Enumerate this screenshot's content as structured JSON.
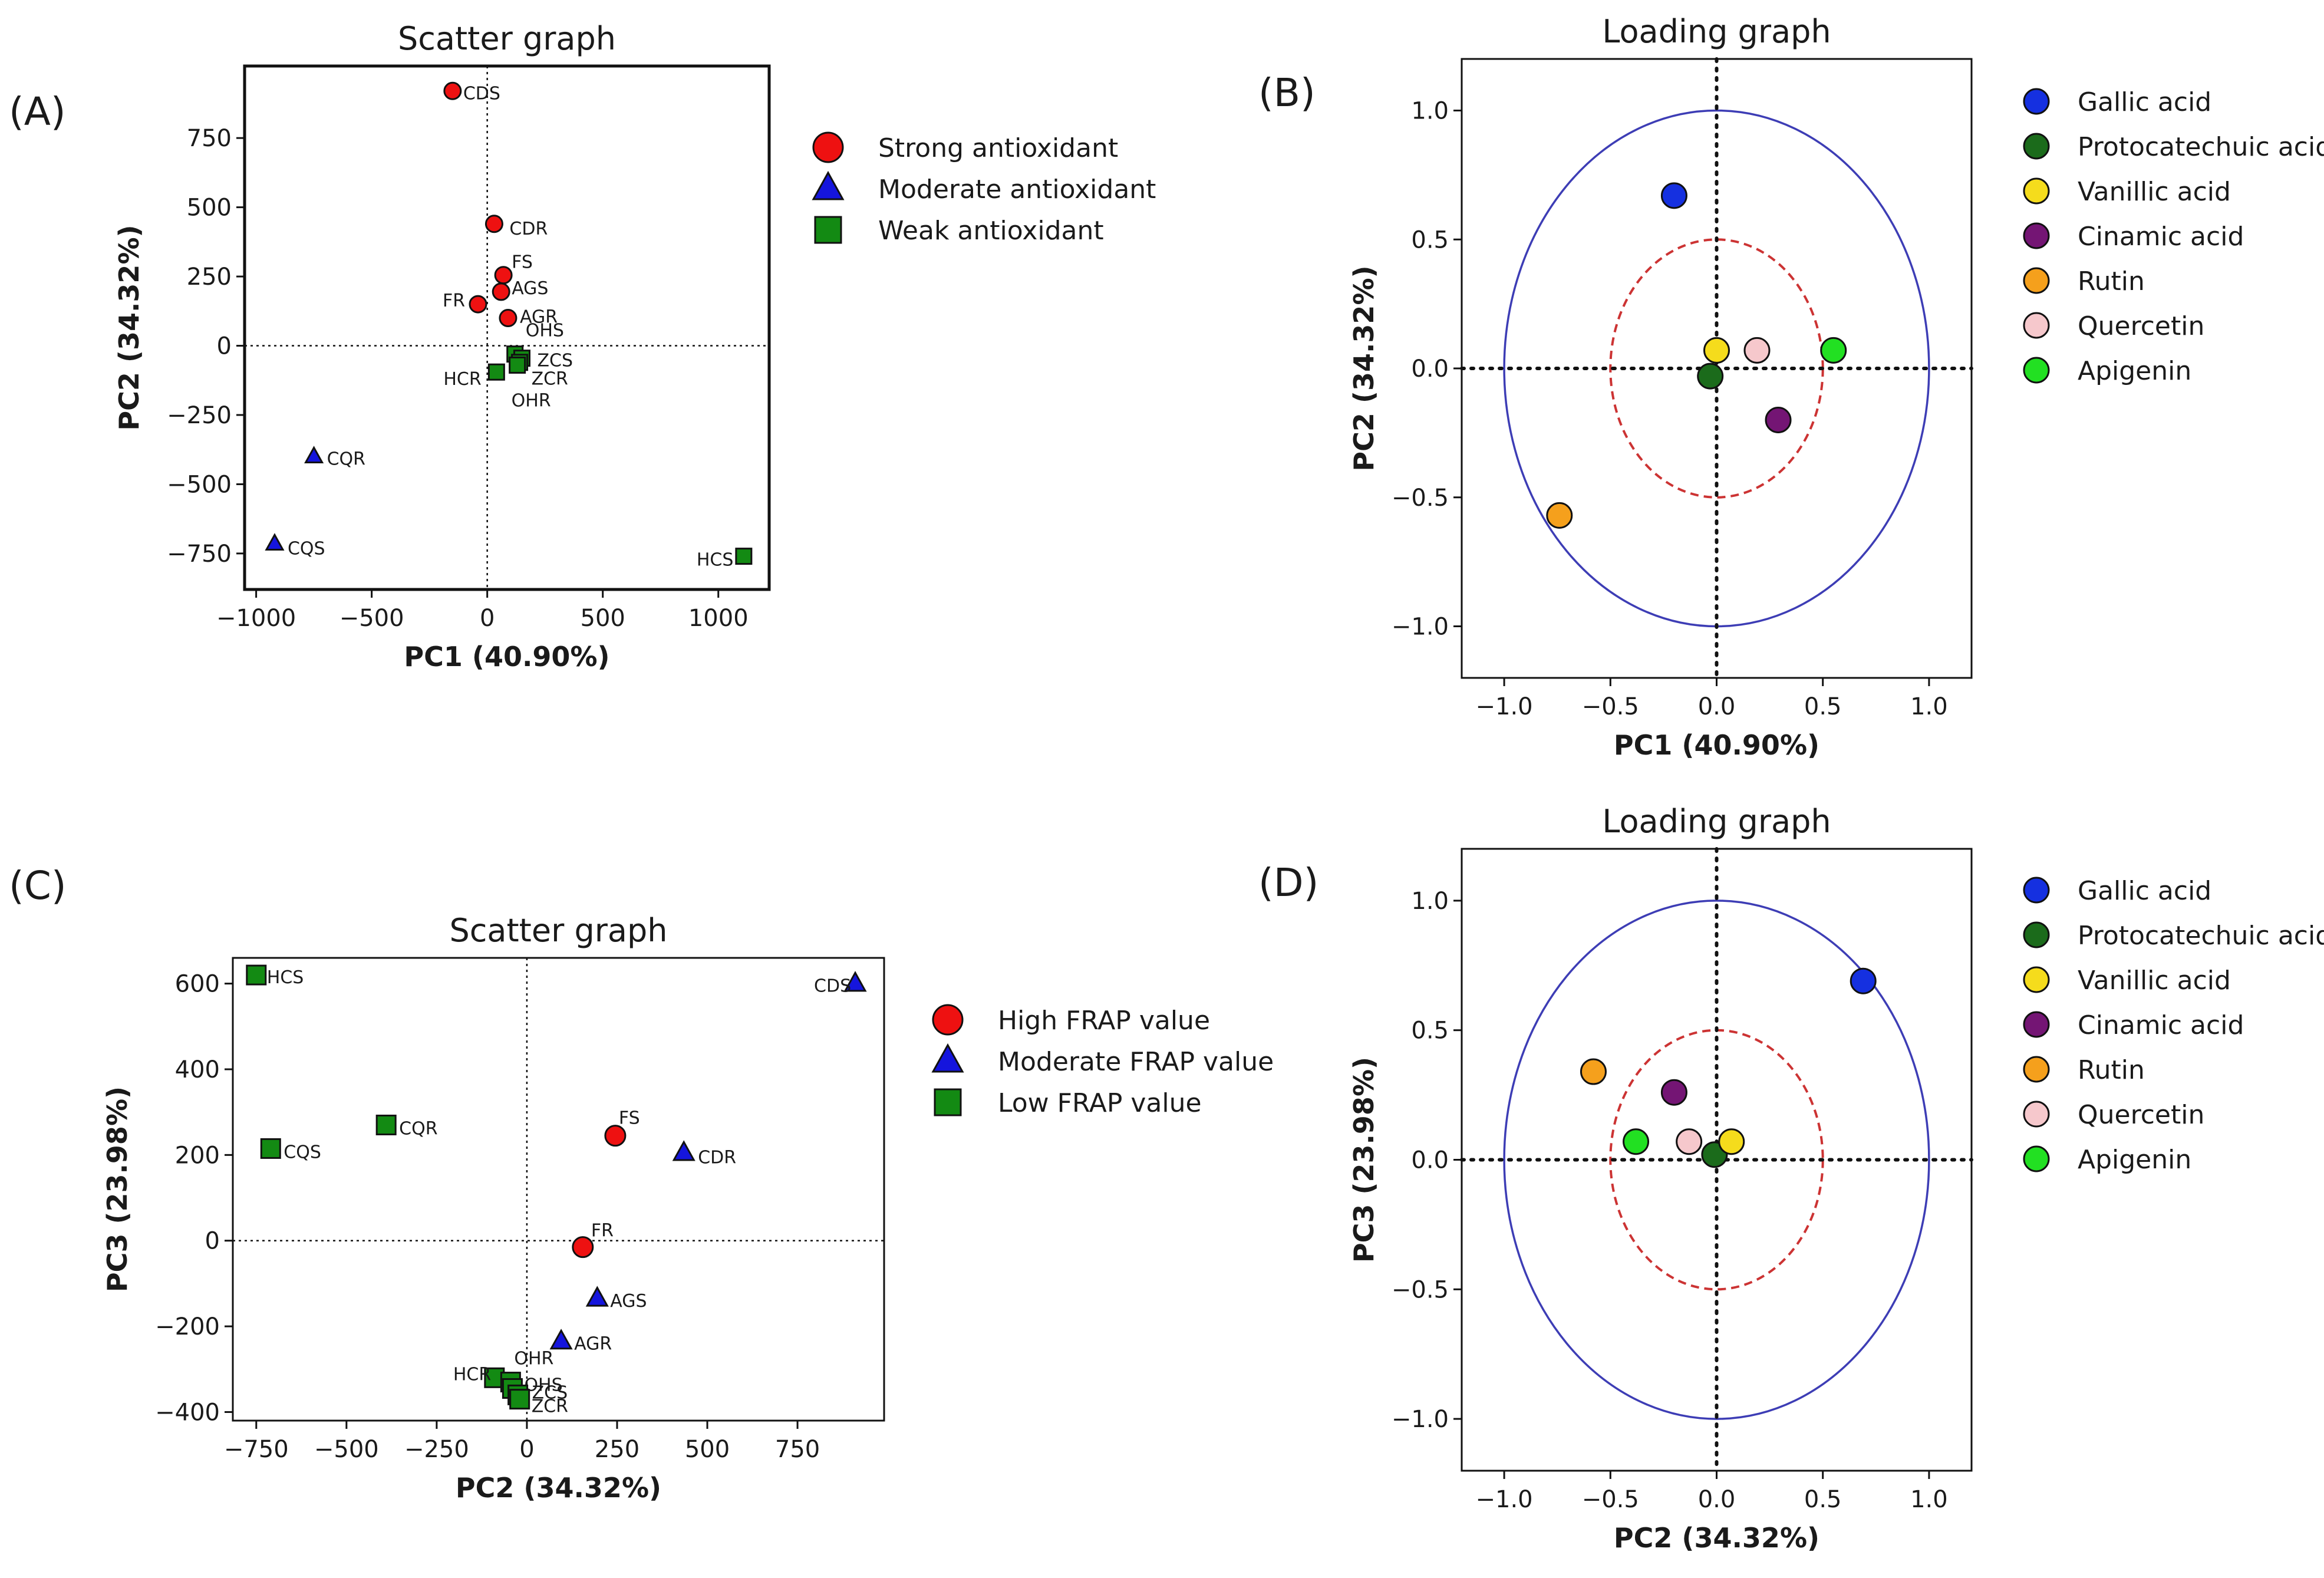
{
  "figure": {
    "panels": [
      {
        "letter": "(A)"
      },
      {
        "letter": "(B)"
      },
      {
        "letter": "(C)"
      },
      {
        "letter": "(D)"
      }
    ]
  },
  "colors": {
    "red": "#ee1111",
    "blue": "#1515dd",
    "green": "#138a13",
    "circle": "#3d3db5",
    "dashed": "#cc3333",
    "gallic": "#1530e0",
    "protocatechuic": "#1b6b1b",
    "vanillic": "#f5dc1c",
    "cinamic": "#741574",
    "rutin": "#f5a01c",
    "quercetin": "#f6c8cc",
    "apigenin": "#22e022"
  },
  "chart_data": [
    {
      "id": "A",
      "type": "scatter",
      "title": "Scatter graph",
      "xlabel": "PC1 (40.90%)",
      "ylabel": "PC2 (34.32%)",
      "xlim": [
        -1050,
        1220
      ],
      "ylim": [
        -880,
        1010
      ],
      "xticks": [
        -1000,
        -500,
        0,
        500,
        1000
      ],
      "yticks": [
        -750,
        -500,
        -250,
        0,
        250,
        500,
        750
      ],
      "xtick_labels": [
        "−1000",
        "−500",
        "0",
        "500",
        "1000"
      ],
      "ytick_labels": [
        "−750",
        "−500",
        "−250",
        "0",
        "250",
        "500",
        "750"
      ],
      "legend": [
        "Strong antioxidant",
        "Moderate antioxidant",
        "Weak antioxidant"
      ],
      "points": [
        {
          "label": "CDS",
          "x": -150,
          "y": 920,
          "group": 0
        },
        {
          "label": "CDR",
          "x": 30,
          "y": 440,
          "group": 0
        },
        {
          "label": "FS",
          "x": 70,
          "y": 255,
          "group": 0
        },
        {
          "label": "AGS",
          "x": 60,
          "y": 195,
          "group": 0
        },
        {
          "label": "FR",
          "x": -40,
          "y": 150,
          "group": 0
        },
        {
          "label": "AGR",
          "x": 90,
          "y": 100,
          "group": 0
        },
        {
          "label": "OHS",
          "x": 120,
          "y": -30,
          "group": 2
        },
        {
          "label": "ZCS",
          "x": 150,
          "y": -45,
          "group": 2
        },
        {
          "label": "HCR",
          "x": 40,
          "y": -95,
          "group": 2
        },
        {
          "label": "ZCR",
          "x": 140,
          "y": -60,
          "group": 2
        },
        {
          "label": "OHR",
          "x": 130,
          "y": -70,
          "group": 2
        },
        {
          "label": "CQR",
          "x": -750,
          "y": -400,
          "group": 1
        },
        {
          "label": "CQS",
          "x": -920,
          "y": -715,
          "group": 1
        },
        {
          "label": "HCS",
          "x": 1110,
          "y": -760,
          "group": 2
        }
      ]
    },
    {
      "id": "B",
      "type": "scatter",
      "title": "Loading graph",
      "xlabel": "PC1 (40.90%)",
      "ylabel": "PC2 (34.32%)",
      "xlim": [
        -1.2,
        1.2
      ],
      "ylim": [
        -1.2,
        1.2
      ],
      "xticks": [
        -1.0,
        -0.5,
        0.0,
        0.5,
        1.0
      ],
      "yticks": [
        -1.0,
        -0.5,
        0.0,
        0.5,
        1.0
      ],
      "xtick_labels": [
        "−1.0",
        "−0.5",
        "0.0",
        "0.5",
        "1.0"
      ],
      "ytick_labels": [
        "−1.0",
        "−0.5",
        "0.0",
        "0.5",
        "1.0"
      ],
      "legend": [
        "Gallic acid",
        "Protocatechuic acid",
        "Vanillic acid",
        "Cinamic acid",
        "Rutin",
        "Quercetin",
        "Apigenin"
      ],
      "points": [
        {
          "name": "Gallic acid",
          "x": -0.2,
          "y": 0.67
        },
        {
          "name": "Protocatechuic acid",
          "x": -0.03,
          "y": -0.03
        },
        {
          "name": "Vanillic acid",
          "x": 0.0,
          "y": 0.07
        },
        {
          "name": "Cinamic acid",
          "x": 0.29,
          "y": -0.2
        },
        {
          "name": "Rutin",
          "x": -0.74,
          "y": -0.57
        },
        {
          "name": "Quercetin",
          "x": 0.19,
          "y": 0.07
        },
        {
          "name": "Apigenin",
          "x": 0.55,
          "y": 0.07
        }
      ]
    },
    {
      "id": "C",
      "type": "scatter",
      "title": "Scatter graph",
      "xlabel": "PC2 (34.32%)",
      "ylabel": "PC3 (23.98%)",
      "xlim": [
        -815,
        990
      ],
      "ylim": [
        -420,
        660
      ],
      "xticks": [
        -750,
        -500,
        -250,
        0,
        250,
        500,
        750
      ],
      "yticks": [
        -400,
        -200,
        0,
        200,
        400,
        600
      ],
      "xtick_labels": [
        "−750",
        "−500",
        "−250",
        "0",
        "250",
        "500",
        "750"
      ],
      "ytick_labels": [
        "−400",
        "−200",
        "0",
        "200",
        "400",
        "600"
      ],
      "legend": [
        "High FRAP value",
        "Moderate FRAP value",
        "Low FRAP value"
      ],
      "points": [
        {
          "label": "HCS",
          "x": -750,
          "y": 620,
          "group": 2
        },
        {
          "label": "CDS",
          "x": 910,
          "y": 600,
          "group": 1
        },
        {
          "label": "CQR",
          "x": -390,
          "y": 270,
          "group": 2
        },
        {
          "label": "CQS",
          "x": -710,
          "y": 215,
          "group": 2
        },
        {
          "label": "FS",
          "x": 245,
          "y": 245,
          "group": 0
        },
        {
          "label": "CDR",
          "x": 435,
          "y": 205,
          "group": 1
        },
        {
          "label": "FR",
          "x": 155,
          "y": -15,
          "group": 0
        },
        {
          "label": "AGS",
          "x": 195,
          "y": -135,
          "group": 1
        },
        {
          "label": "AGR",
          "x": 95,
          "y": -235,
          "group": 1
        },
        {
          "label": "HCR",
          "x": -90,
          "y": -320,
          "group": 2
        },
        {
          "label": "OHR",
          "x": -45,
          "y": -330,
          "group": 2
        },
        {
          "label": "OHS",
          "x": -40,
          "y": -345,
          "group": 2
        },
        {
          "label": "ZCS",
          "x": -25,
          "y": -360,
          "group": 2
        },
        {
          "label": "ZCR",
          "x": -20,
          "y": -370,
          "group": 2
        }
      ]
    },
    {
      "id": "D",
      "type": "scatter",
      "title": "Loading graph",
      "xlabel": "PC2 (34.32%)",
      "ylabel": "PC3 (23.98%)",
      "xlim": [
        -1.2,
        1.2
      ],
      "ylim": [
        -1.2,
        1.2
      ],
      "xticks": [
        -1.0,
        -0.5,
        0.0,
        0.5,
        1.0
      ],
      "yticks": [
        -1.0,
        -0.5,
        0.0,
        0.5,
        1.0
      ],
      "xtick_labels": [
        "−1.0",
        "−0.5",
        "0.0",
        "0.5",
        "1.0"
      ],
      "ytick_labels": [
        "−1.0",
        "−0.5",
        "0.0",
        "0.5",
        "1.0"
      ],
      "legend": [
        "Gallic acid",
        "Protocatechuic acid",
        "Vanillic acid",
        "Cinamic acid",
        "Rutin",
        "Quercetin",
        "Apigenin"
      ],
      "points": [
        {
          "name": "Gallic acid",
          "x": 0.69,
          "y": 0.69
        },
        {
          "name": "Protocatechuic acid",
          "x": -0.01,
          "y": 0.02
        },
        {
          "name": "Vanillic acid",
          "x": 0.07,
          "y": 0.07
        },
        {
          "name": "Cinamic acid",
          "x": -0.2,
          "y": 0.26
        },
        {
          "name": "Rutin",
          "x": -0.58,
          "y": 0.34
        },
        {
          "name": "Quercetin",
          "x": -0.13,
          "y": 0.07
        },
        {
          "name": "Apigenin",
          "x": -0.38,
          "y": 0.07
        }
      ]
    }
  ]
}
